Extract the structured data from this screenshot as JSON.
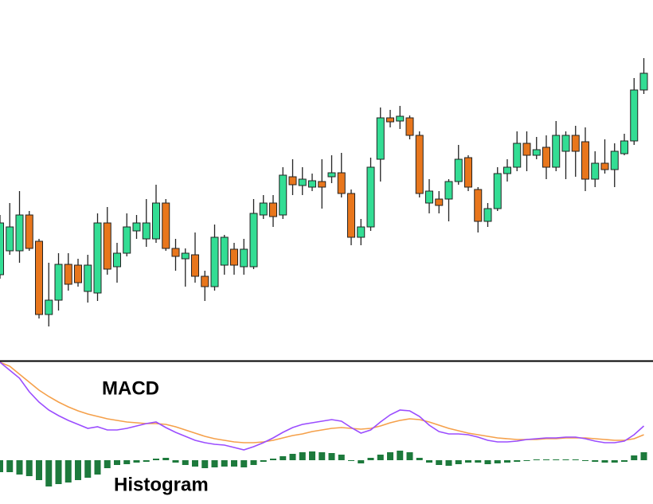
{
  "chart_data": [
    {
      "type": "candlestick",
      "categories": [
        null,
        null,
        null,
        null,
        null,
        null,
        null,
        null,
        null,
        null,
        null,
        null,
        null,
        null,
        null,
        null,
        null,
        null,
        null,
        null,
        null,
        null,
        null,
        null,
        null,
        null,
        null,
        null,
        null,
        null,
        null,
        null,
        null,
        null,
        null,
        null,
        null,
        null,
        null,
        null,
        null,
        null,
        null,
        null,
        null,
        null,
        null,
        null,
        null,
        null,
        null,
        null,
        null,
        null,
        null,
        null,
        null,
        null,
        null,
        null,
        null,
        null,
        null,
        null,
        null,
        null,
        null
      ],
      "open": [
        108,
        138,
        138,
        183,
        150,
        58,
        76,
        121,
        120,
        87,
        85,
        173,
        118,
        135,
        163,
        153,
        153,
        198,
        141,
        128,
        133,
        106,
        93,
        120,
        140,
        118,
        118,
        183,
        198,
        183,
        231,
        220,
        218,
        225,
        231,
        236,
        210,
        155,
        168,
        253,
        305,
        301,
        305,
        283,
        198,
        203,
        203,
        225,
        255,
        215,
        175,
        191,
        235,
        243,
        273,
        258,
        268,
        243,
        263,
        283,
        275,
        228,
        248,
        240,
        260,
        276,
        340
      ],
      "high": [
        183,
        198,
        213,
        188,
        153,
        123,
        135,
        135,
        128,
        133,
        185,
        193,
        148,
        185,
        183,
        203,
        221,
        203,
        153,
        141,
        161,
        113,
        171,
        158,
        148,
        153,
        203,
        208,
        208,
        243,
        253,
        243,
        235,
        253,
        258,
        261,
        215,
        178,
        255,
        318,
        315,
        320,
        308,
        288,
        228,
        213,
        228,
        271,
        258,
        218,
        198,
        243,
        253,
        288,
        288,
        281,
        283,
        301,
        288,
        295,
        293,
        263,
        278,
        273,
        285,
        355,
        380
      ],
      "low": [
        103,
        133,
        123,
        138,
        53,
        43,
        63,
        88,
        93,
        73,
        75,
        108,
        98,
        131,
        153,
        143,
        148,
        138,
        113,
        93,
        98,
        75,
        88,
        108,
        108,
        108,
        115,
        178,
        168,
        178,
        208,
        208,
        213,
        191,
        223,
        205,
        145,
        145,
        163,
        225,
        293,
        291,
        278,
        205,
        185,
        185,
        175,
        221,
        213,
        161,
        168,
        188,
        225,
        238,
        238,
        253,
        228,
        238,
        228,
        231,
        213,
        218,
        235,
        218,
        258,
        271,
        335
      ],
      "close": [
        173,
        168,
        183,
        141,
        58,
        76,
        121,
        96,
        98,
        120,
        173,
        115,
        135,
        168,
        173,
        173,
        198,
        141,
        131,
        135,
        106,
        93,
        155,
        155,
        120,
        140,
        185,
        198,
        181,
        233,
        221,
        228,
        226,
        218,
        236,
        210,
        155,
        168,
        243,
        305,
        300,
        307,
        283,
        210,
        213,
        195,
        225,
        253,
        218,
        175,
        191,
        235,
        243,
        273,
        258,
        265,
        243,
        283,
        283,
        263,
        228,
        248,
        240,
        263,
        276,
        340,
        361
      ],
      "up_color": "#33dd94",
      "down_color": "#e8761c",
      "ylim": [
        0,
        453
      ]
    },
    {
      "type": "macd",
      "annotations": [
        "MACD",
        "Histogram"
      ],
      "categories": [
        null,
        null,
        null,
        null,
        null,
        null,
        null,
        null,
        null,
        null,
        null,
        null,
        null,
        null,
        null,
        null,
        null,
        null,
        null,
        null,
        null,
        null,
        null,
        null,
        null,
        null,
        null,
        null,
        null,
        null,
        null,
        null,
        null,
        null,
        null,
        null,
        null,
        null,
        null,
        null,
        null,
        null,
        null,
        null,
        null,
        null,
        null,
        null,
        null,
        null,
        null,
        null,
        null,
        null,
        null,
        null,
        null,
        null,
        null,
        null,
        null,
        null,
        null,
        null,
        null,
        null,
        null
      ],
      "series": [
        {
          "type": "bar",
          "color": "#1d7a3c",
          "values": [
            -15,
            -15,
            -18,
            -20,
            -25,
            -33,
            -30,
            -28,
            -25,
            -22,
            -18,
            -10,
            -6,
            -5,
            -3,
            -2,
            2,
            3,
            -3,
            -6,
            -8,
            -10,
            -9,
            -8,
            -8,
            -9,
            -6,
            -2,
            2,
            5,
            8,
            10,
            11,
            10,
            9,
            7,
            -1,
            -4,
            3,
            7,
            10,
            12,
            10,
            3,
            -3,
            -6,
            -7,
            -5,
            -3,
            -3,
            -5,
            -4,
            -3,
            -2,
            -1,
            1,
            1,
            1,
            1,
            1,
            -1,
            -2,
            -3,
            -3,
            -2,
            6,
            10
          ]
        },
        {
          "type": "line",
          "color": "#f5a04a",
          "values": [
            123,
            118,
            108,
            98,
            88,
            80,
            73,
            67,
            62,
            58,
            55,
            52,
            50,
            48,
            47,
            46,
            46,
            45,
            42,
            38,
            34,
            30,
            27,
            25,
            23,
            22,
            22,
            23,
            25,
            28,
            31,
            33,
            36,
            38,
            40,
            41,
            40,
            39,
            40,
            43,
            47,
            50,
            52,
            51,
            48,
            44,
            40,
            37,
            34,
            32,
            30,
            28,
            27,
            26,
            26,
            26,
            27,
            27,
            28,
            28,
            28,
            27,
            26,
            25,
            25,
            27,
            32
          ]
        },
        {
          "type": "line",
          "color": "#9b4dff",
          "values": [
            123,
            113,
            103,
            86,
            73,
            63,
            56,
            50,
            45,
            40,
            42,
            38,
            38,
            40,
            43,
            46,
            48,
            41,
            35,
            30,
            25,
            22,
            20,
            19,
            16,
            13,
            17,
            22,
            28,
            35,
            41,
            45,
            47,
            49,
            51,
            49,
            41,
            34,
            38,
            48,
            57,
            63,
            62,
            55,
            44,
            36,
            33,
            33,
            32,
            29,
            25,
            23,
            23,
            24,
            26,
            27,
            28,
            28,
            29,
            29,
            27,
            24,
            22,
            22,
            24,
            32,
            43
          ]
        }
      ],
      "ylim": [
        -55,
        125
      ]
    }
  ]
}
